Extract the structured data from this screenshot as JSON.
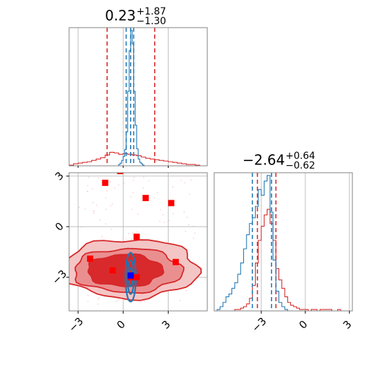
{
  "chart_data": [
    {
      "type": "histogram",
      "panel": "top-left",
      "title": {
        "value": "0.23",
        "upper": "+1.87",
        "lower": "−1.30"
      },
      "xlim": [
        -3.6,
        5.6
      ],
      "grid": true,
      "series": [
        {
          "name": "",
          "color": "#d62728",
          "bin_edges": [
            -3.6,
            -3.3,
            -3.0,
            -2.7,
            -2.4,
            -2.1,
            -1.8,
            -1.5,
            -1.2,
            -0.9,
            -0.6,
            -0.3,
            0.0,
            0.3,
            0.6,
            0.9,
            1.2,
            1.5,
            1.8,
            2.1,
            2.4,
            2.7,
            3.0,
            3.3,
            3.6,
            3.9,
            4.2,
            4.5,
            4.8,
            5.1,
            5.4
          ],
          "counts": [
            1,
            3,
            4,
            5,
            6,
            8,
            10,
            12,
            16,
            20,
            19,
            17,
            18,
            17,
            16,
            15,
            13,
            11,
            10,
            9,
            8,
            7,
            6,
            5,
            4,
            3,
            2,
            2,
            1,
            0
          ],
          "quantile_lines": [
            -1.07,
            2.1
          ]
        },
        {
          "name": "",
          "color": "#1f77b4",
          "bin_edges": [
            -0.3,
            -0.2,
            -0.1,
            0.0,
            0.1,
            0.2,
            0.3,
            0.4,
            0.5,
            0.6,
            0.7,
            0.8,
            0.9,
            1.0,
            1.1,
            1.2,
            1.3,
            1.4
          ],
          "counts": [
            2,
            4,
            8,
            14,
            24,
            50,
            110,
            170,
            200,
            180,
            110,
            60,
            25,
            10,
            5,
            3,
            1
          ],
          "quantile_lines": [
            0.2,
            0.5,
            0.7
          ]
        }
      ]
    },
    {
      "type": "scatter-contour",
      "panel": "bottom-left",
      "xlim": [
        -3.6,
        5.6
      ],
      "ylim": [
        -5.0,
        3.2
      ],
      "grid": true,
      "xticks": [
        "−3",
        "0",
        "3"
      ],
      "yticks": [
        "3",
        "0",
        "−3"
      ],
      "xtick_values": [
        -3,
        0,
        3
      ],
      "ytick_values": [
        3,
        0,
        -3
      ],
      "red_markers": [
        [
          -1.2,
          2.6
        ],
        [
          -0.2,
          3.3
        ],
        [
          1.5,
          1.7
        ],
        [
          3.2,
          1.4
        ],
        [
          0.9,
          -0.6
        ],
        [
          -2.2,
          -1.9
        ],
        [
          -0.7,
          -2.6
        ],
        [
          3.5,
          -2.1
        ],
        [
          0.5,
          -3.0
        ],
        [
          0.9,
          -3.0
        ]
      ],
      "blue_marker": [
        0.5,
        -2.9
      ],
      "red_contour_levels": [
        {
          "fill": "#f4c5c5",
          "center": [
            0.5,
            -2.5
          ],
          "rx": 4.5,
          "ry": 1.75
        },
        {
          "fill": "#ea8f90",
          "center": [
            0.3,
            -2.6
          ],
          "rx": 3.6,
          "ry": 1.3
        },
        {
          "fill": "#d82a2c",
          "center": [
            0.1,
            -2.6
          ],
          "rx": 2.5,
          "ry": 0.95
        }
      ],
      "blue_contour_levels": [
        {
          "center": [
            0.5,
            -3.0
          ],
          "rx": 0.35,
          "ry": 1.45
        },
        {
          "center": [
            0.5,
            -3.0
          ],
          "rx": 0.22,
          "ry": 1.0
        },
        {
          "center": [
            0.5,
            -3.0
          ],
          "rx": 0.12,
          "ry": 0.55
        }
      ]
    },
    {
      "type": "histogram",
      "panel": "bottom-right",
      "title": {
        "value": "−2.64",
        "upper": "+0.64",
        "lower": "−0.62"
      },
      "xlim": [
        -6.2,
        3.2
      ],
      "grid": true,
      "xticks": [
        "−3",
        "0",
        "3"
      ],
      "xtick_values": [
        -3,
        0,
        3
      ],
      "series": [
        {
          "name": "",
          "color": "#d62728",
          "bin_edges": [
            -5.2,
            -5.0,
            -4.8,
            -4.6,
            -4.4,
            -4.2,
            -4.0,
            -3.8,
            -3.6,
            -3.4,
            -3.2,
            -3.0,
            -2.8,
            -2.6,
            -2.4,
            -2.2,
            -2.0,
            -1.8,
            -1.6,
            -1.4,
            -1.2,
            -1.0,
            -0.8,
            -0.6,
            -0.4,
            -0.2,
            0.0,
            0.2,
            0.4,
            0.6,
            0.8,
            1.0,
            1.2,
            1.4,
            1.6,
            1.8,
            2.0,
            2.2,
            2.4,
            2.6,
            2.8,
            3.0
          ],
          "counts": [
            0,
            0,
            1,
            1,
            2,
            3,
            5,
            9,
            18,
            34,
            50,
            60,
            68,
            72,
            62,
            50,
            30,
            22,
            16,
            10,
            6,
            4,
            3,
            2,
            1,
            1,
            1,
            0,
            1,
            1,
            0,
            1,
            1,
            1,
            1,
            0,
            0,
            1,
            0,
            0,
            0
          ],
          "quantile_lines": [
            -3.26,
            -2.0
          ]
        },
        {
          "name": "",
          "color": "#1f77b4",
          "bin_edges": [
            -6.0,
            -5.8,
            -5.6,
            -5.4,
            -5.2,
            -5.0,
            -4.8,
            -4.6,
            -4.4,
            -4.2,
            -4.0,
            -3.8,
            -3.6,
            -3.4,
            -3.2,
            -3.0,
            -2.8,
            -2.6,
            -2.4,
            -2.2,
            -2.0,
            -1.8,
            -1.6,
            -1.4,
            -1.2,
            -1.0
          ],
          "counts": [
            1,
            3,
            6,
            10,
            12,
            16,
            20,
            26,
            34,
            44,
            54,
            62,
            66,
            74,
            86,
            82,
            92,
            96,
            70,
            36,
            14,
            6,
            3,
            1,
            0
          ],
          "quantile_lines": [
            -3.6,
            -2.3
          ]
        }
      ]
    }
  ]
}
